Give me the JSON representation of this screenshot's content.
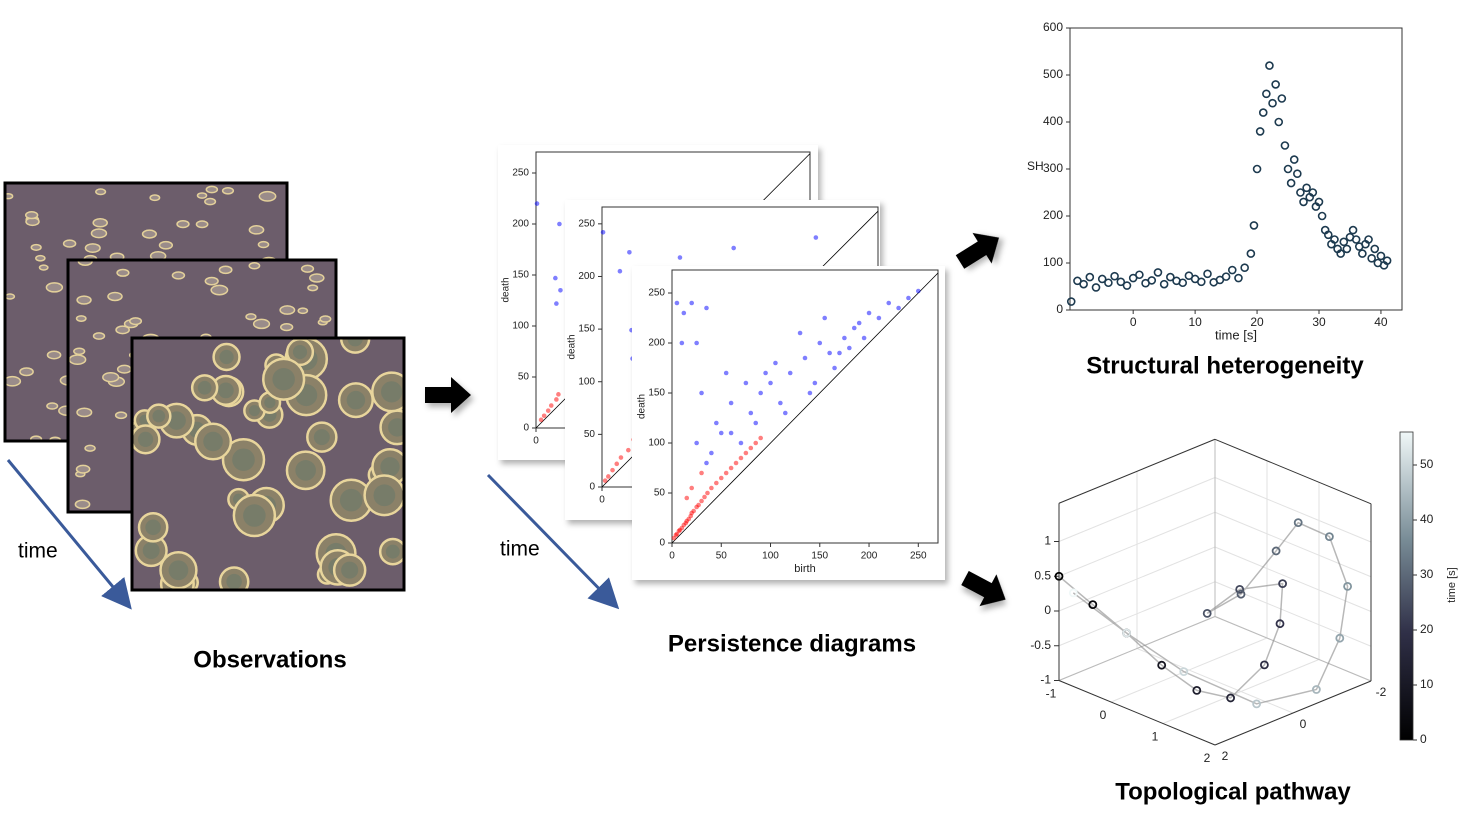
{
  "labels": {
    "observations": "Observations",
    "time_left": "time",
    "persistence": "Persistence diagrams",
    "time_mid": "time",
    "structural": "Structural heterogeneity",
    "pathway": "Topological pathway"
  },
  "chart_data": [
    {
      "type": "scatter",
      "ylabel": "SH",
      "xlabel": "time [s]",
      "color": "#1d3a4f",
      "x": [
        -10,
        -9,
        -8,
        -7,
        -6,
        -5,
        -4,
        -3,
        -2,
        -1,
        0,
        1,
        2,
        3,
        4,
        5,
        6,
        7,
        8,
        9,
        10,
        11,
        12,
        13,
        14,
        15,
        16,
        17,
        18,
        19,
        19.5,
        20,
        20.5,
        21,
        21.5,
        22,
        22.5,
        23,
        23.5,
        24,
        24.5,
        25,
        25.5,
        26,
        26.5,
        27,
        27.5,
        28,
        28.5,
        29,
        29.5,
        30,
        30.5,
        31,
        31.5,
        32,
        32.5,
        33,
        33.5,
        34,
        34.5,
        35,
        35.5,
        36,
        36.5,
        37,
        37.5,
        38,
        38.5,
        39,
        39.5,
        40,
        40.5,
        41
      ],
      "values": [
        18,
        62,
        55,
        70,
        48,
        66,
        58,
        72,
        60,
        52,
        68,
        75,
        57,
        63,
        80,
        55,
        70,
        62,
        58,
        73,
        66,
        60,
        77,
        59,
        64,
        71,
        85,
        68,
        90,
        120,
        180,
        300,
        380,
        420,
        460,
        520,
        440,
        480,
        400,
        450,
        350,
        300,
        270,
        320,
        290,
        250,
        230,
        260,
        240,
        250,
        220,
        230,
        200,
        170,
        160,
        140,
        150,
        130,
        120,
        145,
        130,
        155,
        170,
        150,
        135,
        120,
        140,
        150,
        110,
        130,
        100,
        115,
        95,
        105
      ],
      "xlim": [
        -10.2,
        43.4
      ],
      "xticks": [
        0,
        10,
        20,
        30,
        40
      ],
      "ylim": [
        0,
        600
      ],
      "yticks": [
        0,
        100,
        200,
        300,
        400,
        500,
        600
      ]
    },
    {
      "type": "scatter",
      "ylabel": "death",
      "xlim": [
        0,
        269
      ],
      "ylim": [
        0,
        270.6
      ],
      "xticks": [
        0
      ],
      "yticks": [
        0,
        50,
        100,
        150,
        200,
        250
      ],
      "series": [
        {
          "color": "#ff0000",
          "x": [
            5,
            8,
            12,
            15,
            20,
            22
          ],
          "values": [
            8,
            12,
            17,
            22,
            28,
            33
          ]
        },
        {
          "color": "#0000ff",
          "x": [
            1,
            23,
            20,
            19,
            24
          ],
          "values": [
            220,
            200,
            122,
            147,
            135
          ]
        }
      ]
    },
    {
      "type": "scatter",
      "ylabel": "death",
      "xlim": [
        0,
        262
      ],
      "ylim": [
        0,
        266
      ],
      "xticks": [
        0
      ],
      "yticks": [
        0,
        50,
        100,
        150,
        200,
        250
      ],
      "series": [
        {
          "color": "#ff0000",
          "x": [
            3,
            6,
            10,
            14,
            18,
            25,
            30
          ],
          "values": [
            6,
            10,
            16,
            22,
            28,
            35,
            45
          ]
        },
        {
          "color": "#0000ff",
          "x": [
            1,
            26,
            17,
            28,
            29,
            74,
            125,
            203
          ],
          "values": [
            242,
            223,
            205,
            149,
            122,
            218,
            227,
            237
          ]
        }
      ]
    },
    {
      "type": "scatter",
      "xlabel": "birth",
      "ylabel": "death",
      "xlim": [
        0,
        270
      ],
      "ylim": [
        0,
        273
      ],
      "xticks": [
        0,
        50,
        100,
        150,
        200,
        250
      ],
      "yticks": [
        0,
        50,
        100,
        150,
        200,
        250
      ],
      "series": [
        {
          "color": "#ff0000",
          "x": [
            2,
            4,
            5,
            7,
            8,
            10,
            12,
            14,
            15,
            17,
            19,
            20,
            22,
            25,
            27,
            30,
            33,
            36,
            40,
            45,
            50,
            55,
            60,
            65,
            70,
            75,
            80,
            85,
            90,
            20,
            30,
            15
          ],
          "values": [
            5,
            8,
            9,
            12,
            13,
            15,
            18,
            20,
            22,
            24,
            27,
            30,
            32,
            36,
            38,
            42,
            46,
            50,
            55,
            60,
            65,
            70,
            75,
            80,
            85,
            90,
            95,
            100,
            105,
            55,
            70,
            45
          ]
        },
        {
          "color": "#0000ff",
          "x": [
            5,
            10,
            12,
            20,
            25,
            30,
            35,
            40,
            45,
            50,
            55,
            60,
            70,
            80,
            90,
            100,
            110,
            120,
            130,
            140,
            150,
            160,
            170,
            180,
            190,
            200,
            210,
            220,
            230,
            240,
            250,
            25,
            35,
            60,
            85,
            95,
            115,
            135,
            145,
            155,
            165,
            175,
            185,
            195,
            75,
            105
          ],
          "values": [
            240,
            200,
            230,
            240,
            200,
            150,
            235,
            90,
            120,
            110,
            170,
            140,
            100,
            130,
            150,
            160,
            140,
            170,
            210,
            150,
            200,
            190,
            190,
            195,
            220,
            230,
            225,
            240,
            235,
            245,
            252,
            100,
            80,
            110,
            120,
            170,
            130,
            185,
            160,
            225,
            175,
            205,
            215,
            205,
            160,
            180
          ]
        }
      ]
    },
    {
      "type": "scatter3d",
      "x": [
        -1,
        -0.5,
        0,
        0.6,
        1.2,
        1.7,
        1.9,
        1.9,
        1.8,
        1.2,
        0.8,
        1.0,
        1.3,
        1.5,
        1.8,
        2,
        2,
        2,
        1.6,
        0.8,
        0,
        -0.8
      ],
      "y": [
        2,
        1.8,
        1.6,
        1.5,
        1.4,
        1.2,
        0.6,
        0.2,
        0,
        0.3,
        0.6,
        0,
        -0.5,
        -0.8,
        -1.2,
        -1.4,
        -1.2,
        -0.6,
        0.4,
        1.2,
        1.6,
        1.9
      ],
      "z": [
        0.5,
        0.2,
        -0.1,
        -0.4,
        -0.6,
        -0.6,
        -0.2,
        0.3,
        0.8,
        0.6,
        0.2,
        0.4,
        1.0,
        1.4,
        1.2,
        0.5,
        -0.2,
        -0.8,
        -0.9,
        -0.5,
        -0.1,
        0.3
      ],
      "t": [
        0,
        3,
        6,
        9,
        12,
        15,
        18,
        20,
        22,
        24,
        26,
        28,
        30,
        32,
        35,
        38,
        41,
        44,
        47,
        50,
        53,
        56
      ],
      "xlim": [
        -1,
        2
      ],
      "ylim": [
        -2,
        2
      ],
      "zlim": [
        -1,
        1.55
      ],
      "xticks": [
        -1,
        0,
        1,
        2
      ],
      "yticks": [
        -2,
        0,
        2
      ],
      "zticks": [
        -1,
        -0.5,
        0,
        0.5,
        1
      ],
      "colorbar": {
        "label": "time [s]",
        "lim": [
          0,
          56
        ],
        "ticks": [
          0,
          10,
          20,
          30,
          40,
          50
        ]
      }
    }
  ]
}
